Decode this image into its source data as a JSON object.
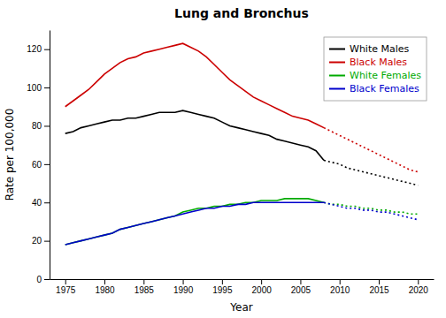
{
  "chart_data": {
    "type": "line",
    "title": "Lung and Bronchus",
    "xlabel": "Year",
    "ylabel": "Rate per 100,000",
    "xlim": [
      1973,
      2022
    ],
    "xticks": [
      1975,
      1980,
      1985,
      1990,
      1995,
      2000,
      2005,
      2010,
      2015,
      2020
    ],
    "ylim": [
      0,
      130
    ],
    "yticks": [
      0,
      20,
      40,
      60,
      80,
      100,
      120
    ],
    "grid": false,
    "legend": "upper right",
    "series": [
      {
        "name": "White Males",
        "color": "#000000",
        "line_style": "solid",
        "x": [
          1975,
          1976,
          1977,
          1978,
          1979,
          1980,
          1981,
          1982,
          1983,
          1984,
          1985,
          1986,
          1987,
          1988,
          1989,
          1990,
          1991,
          1992,
          1993,
          1994,
          1995,
          1996,
          1997,
          1998,
          1999,
          2000,
          2001,
          2002,
          2003,
          2004,
          2005,
          2006,
          2007,
          2008
        ],
        "values": [
          76,
          77,
          79,
          80,
          81,
          82,
          83,
          83,
          84,
          84,
          85,
          86,
          87,
          87,
          87,
          88,
          87,
          86,
          85,
          84,
          82,
          80,
          79,
          78,
          77,
          76,
          75,
          73,
          72,
          71,
          70,
          69,
          67,
          62
        ]
      },
      {
        "name": "Black Males",
        "color": "#cc0000",
        "line_style": "solid",
        "x": [
          1975,
          1976,
          1977,
          1978,
          1979,
          1980,
          1981,
          1982,
          1983,
          1984,
          1985,
          1986,
          1987,
          1988,
          1989,
          1990,
          1991,
          1992,
          1993,
          1994,
          1995,
          1996,
          1997,
          1998,
          1999,
          2000,
          2001,
          2002,
          2003,
          2004,
          2005,
          2006,
          2007,
          2008
        ],
        "values": [
          90,
          93,
          96,
          99,
          103,
          107,
          110,
          113,
          115,
          116,
          118,
          119,
          120,
          121,
          122,
          123,
          121,
          119,
          116,
          112,
          108,
          104,
          101,
          98,
          95,
          93,
          91,
          89,
          87,
          85,
          84,
          83,
          81,
          79
        ]
      },
      {
        "name": "White Females",
        "color": "#00aa00",
        "line_style": "solid",
        "x": [
          1975,
          1976,
          1977,
          1978,
          1979,
          1980,
          1981,
          1982,
          1983,
          1984,
          1985,
          1986,
          1987,
          1988,
          1989,
          1990,
          1991,
          1992,
          1993,
          1994,
          1995,
          1996,
          1997,
          1998,
          1999,
          2000,
          2001,
          2002,
          2003,
          2004,
          2005,
          2006,
          2007,
          2008
        ],
        "values": [
          18,
          19,
          20,
          21,
          22,
          23,
          24,
          26,
          27,
          28,
          29,
          30,
          31,
          32,
          33,
          35,
          36,
          37,
          37,
          38,
          38,
          39,
          39,
          40,
          40,
          41,
          41,
          41,
          42,
          42,
          42,
          42,
          41,
          40
        ]
      },
      {
        "name": "Black Females",
        "color": "#0000cc",
        "line_style": "solid",
        "x": [
          1975,
          1976,
          1977,
          1978,
          1979,
          1980,
          1981,
          1982,
          1983,
          1984,
          1985,
          1986,
          1987,
          1988,
          1989,
          1990,
          1991,
          1992,
          1993,
          1994,
          1995,
          1996,
          1997,
          1998,
          1999,
          2000,
          2001,
          2002,
          2003,
          2004,
          2005,
          2006,
          2007,
          2008
        ],
        "values": [
          18,
          19,
          20,
          21,
          22,
          23,
          24,
          26,
          27,
          28,
          29,
          30,
          31,
          32,
          33,
          34,
          35,
          36,
          37,
          37,
          38,
          38,
          39,
          39,
          40,
          40,
          40,
          40,
          40,
          40,
          40,
          40,
          40,
          40
        ]
      },
      {
        "color": "#000000",
        "line_style": "dotted",
        "x": [
          2008,
          2009,
          2010,
          2011,
          2012,
          2013,
          2014,
          2015,
          2016,
          2017,
          2018,
          2019,
          2020
        ],
        "values": [
          62,
          61,
          60,
          58,
          57,
          56,
          55,
          54,
          53,
          52,
          51,
          50,
          49
        ]
      },
      {
        "color": "#cc0000",
        "line_style": "dotted",
        "x": [
          2008,
          2009,
          2010,
          2011,
          2012,
          2013,
          2014,
          2015,
          2016,
          2017,
          2018,
          2019,
          2020
        ],
        "values": [
          79,
          77,
          75,
          73,
          71,
          69,
          67,
          65,
          63,
          61,
          59,
          57,
          56
        ]
      },
      {
        "color": "#00aa00",
        "line_style": "dotted",
        "x": [
          2008,
          2009,
          2010,
          2011,
          2012,
          2013,
          2014,
          2015,
          2016,
          2017,
          2018,
          2019,
          2020
        ],
        "values": [
          40,
          39,
          39,
          38,
          38,
          37,
          37,
          36,
          36,
          35,
          35,
          34,
          34
        ]
      },
      {
        "color": "#0000cc",
        "line_style": "dotted",
        "x": [
          2008,
          2009,
          2010,
          2011,
          2012,
          2013,
          2014,
          2015,
          2016,
          2017,
          2018,
          2019,
          2020
        ],
        "values": [
          40,
          39,
          38,
          37,
          37,
          36,
          36,
          35,
          35,
          34,
          33,
          32,
          31
        ]
      }
    ]
  }
}
